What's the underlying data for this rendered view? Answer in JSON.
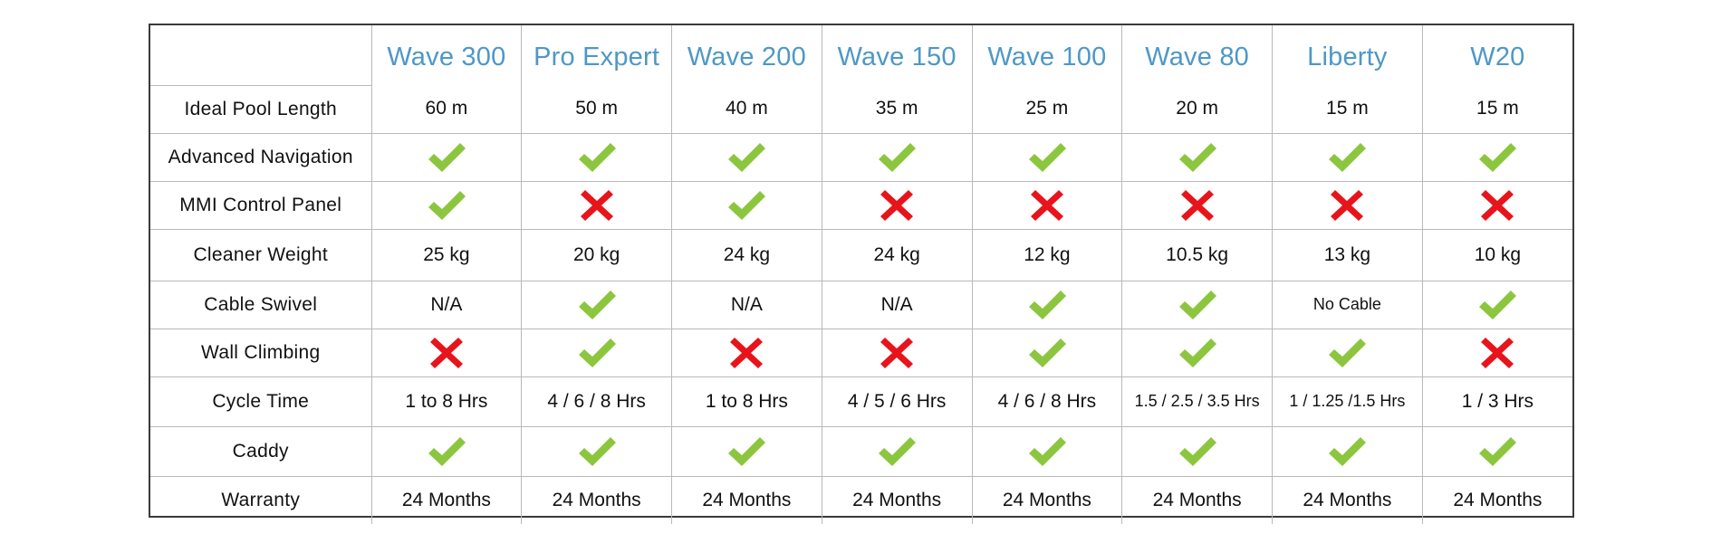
{
  "products": [
    "Wave 300",
    "Pro Expert",
    "Wave 200",
    "Wave 150",
    "Wave 100",
    "Wave 80",
    "Liberty",
    "W20"
  ],
  "colors": {
    "header_text": "#4e98c6",
    "check": "#8cc63f",
    "cross": "#e8141b",
    "grid": "#b9b9b9",
    "frame": "#3a3a3a"
  },
  "rows": [
    {
      "label": "Ideal Pool Length",
      "cells": [
        {
          "type": "text",
          "value": "60 m"
        },
        {
          "type": "text",
          "value": "50 m"
        },
        {
          "type": "text",
          "value": "40 m"
        },
        {
          "type": "text",
          "value": "35 m"
        },
        {
          "type": "text",
          "value": "25 m"
        },
        {
          "type": "text",
          "value": "20 m"
        },
        {
          "type": "text",
          "value": "15 m"
        },
        {
          "type": "text",
          "value": "15 m"
        }
      ]
    },
    {
      "label": "Advanced Navigation",
      "cells": [
        {
          "type": "check"
        },
        {
          "type": "check"
        },
        {
          "type": "check"
        },
        {
          "type": "check"
        },
        {
          "type": "check"
        },
        {
          "type": "check"
        },
        {
          "type": "check"
        },
        {
          "type": "check"
        }
      ]
    },
    {
      "label": "MMI Control Panel",
      "cells": [
        {
          "type": "check"
        },
        {
          "type": "cross"
        },
        {
          "type": "check"
        },
        {
          "type": "cross"
        },
        {
          "type": "cross"
        },
        {
          "type": "cross"
        },
        {
          "type": "cross"
        },
        {
          "type": "cross"
        }
      ]
    },
    {
      "label": "Cleaner Weight",
      "cells": [
        {
          "type": "text",
          "value": "25 kg"
        },
        {
          "type": "text",
          "value": "20 kg"
        },
        {
          "type": "text",
          "value": "24 kg"
        },
        {
          "type": "text",
          "value": "24 kg"
        },
        {
          "type": "text",
          "value": "12 kg"
        },
        {
          "type": "text",
          "value": "10.5 kg"
        },
        {
          "type": "text",
          "value": "13 kg"
        },
        {
          "type": "text",
          "value": "10 kg"
        }
      ]
    },
    {
      "label": "Cable Swivel",
      "cells": [
        {
          "type": "text",
          "value": "N/A"
        },
        {
          "type": "check"
        },
        {
          "type": "text",
          "value": "N/A"
        },
        {
          "type": "text",
          "value": "N/A"
        },
        {
          "type": "check"
        },
        {
          "type": "check"
        },
        {
          "type": "text",
          "value": "No Cable",
          "small": true
        },
        {
          "type": "check"
        }
      ]
    },
    {
      "label": "Wall Climbing",
      "cells": [
        {
          "type": "cross"
        },
        {
          "type": "check"
        },
        {
          "type": "cross"
        },
        {
          "type": "cross"
        },
        {
          "type": "check"
        },
        {
          "type": "check"
        },
        {
          "type": "check"
        },
        {
          "type": "cross"
        }
      ]
    },
    {
      "label": "Cycle Time",
      "cells": [
        {
          "type": "text",
          "value": "1 to 8 Hrs"
        },
        {
          "type": "text",
          "value": "4 / 6 / 8 Hrs"
        },
        {
          "type": "text",
          "value": "1 to 8 Hrs"
        },
        {
          "type": "text",
          "value": "4 / 5 / 6 Hrs"
        },
        {
          "type": "text",
          "value": "4 / 6 / 8 Hrs"
        },
        {
          "type": "text",
          "value": "1.5 / 2.5 / 3.5 Hrs",
          "small": true
        },
        {
          "type": "text",
          "value": "1 / 1.25 /1.5 Hrs",
          "small": true
        },
        {
          "type": "text",
          "value": "1 / 3 Hrs"
        }
      ]
    },
    {
      "label": "Caddy",
      "cells": [
        {
          "type": "check"
        },
        {
          "type": "check"
        },
        {
          "type": "check"
        },
        {
          "type": "check"
        },
        {
          "type": "check"
        },
        {
          "type": "check"
        },
        {
          "type": "check"
        },
        {
          "type": "check"
        }
      ]
    },
    {
      "label": "Warranty",
      "cells": [
        {
          "type": "text",
          "value": "24 Months"
        },
        {
          "type": "text",
          "value": "24 Months"
        },
        {
          "type": "text",
          "value": "24 Months"
        },
        {
          "type": "text",
          "value": "24 Months"
        },
        {
          "type": "text",
          "value": "24 Months"
        },
        {
          "type": "text",
          "value": "24 Months"
        },
        {
          "type": "text",
          "value": "24 Months"
        },
        {
          "type": "text",
          "value": "24 Months"
        }
      ]
    }
  ]
}
